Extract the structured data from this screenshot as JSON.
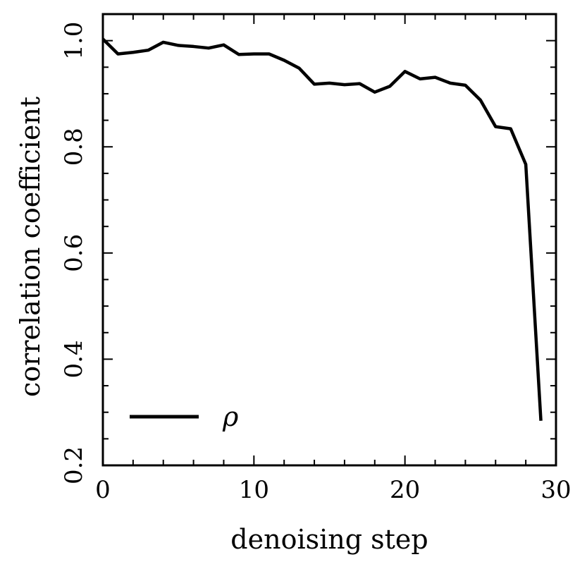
{
  "chart_data": {
    "type": "line",
    "title": "",
    "xlabel": "denoising step",
    "ylabel": "correlation coefficient",
    "xlim": [
      0,
      30
    ],
    "ylim": [
      0.2,
      1.05
    ],
    "xticks": [
      0,
      10,
      20,
      30
    ],
    "xtick_labels": [
      "0",
      "10",
      "20",
      "30"
    ],
    "yticks": [
      0.2,
      0.4,
      0.6,
      0.8,
      1.0
    ],
    "ytick_labels": [
      "0.2",
      "0.4",
      "0.6",
      "0.8",
      "1.0"
    ],
    "x_minor_step": 2,
    "y_minor_step": 0.05,
    "grid": false,
    "legend": {
      "position": "bottom-left",
      "entries": [
        "ρ"
      ]
    },
    "series": [
      {
        "name": "ρ",
        "color": "#000000",
        "x": [
          0,
          1,
          2,
          3,
          4,
          5,
          6,
          7,
          8,
          9,
          10,
          11,
          12,
          13,
          14,
          15,
          16,
          17,
          18,
          19,
          20,
          21,
          22,
          23,
          24,
          25,
          26,
          27,
          28,
          29
        ],
        "y": [
          1.003,
          0.975,
          0.978,
          0.982,
          0.997,
          0.991,
          0.989,
          0.986,
          0.992,
          0.974,
          0.975,
          0.975,
          0.963,
          0.948,
          0.918,
          0.92,
          0.917,
          0.919,
          0.903,
          0.914,
          0.942,
          0.928,
          0.931,
          0.92,
          0.916,
          0.888,
          0.838,
          0.834,
          0.767,
          0.284
        ]
      }
    ]
  }
}
